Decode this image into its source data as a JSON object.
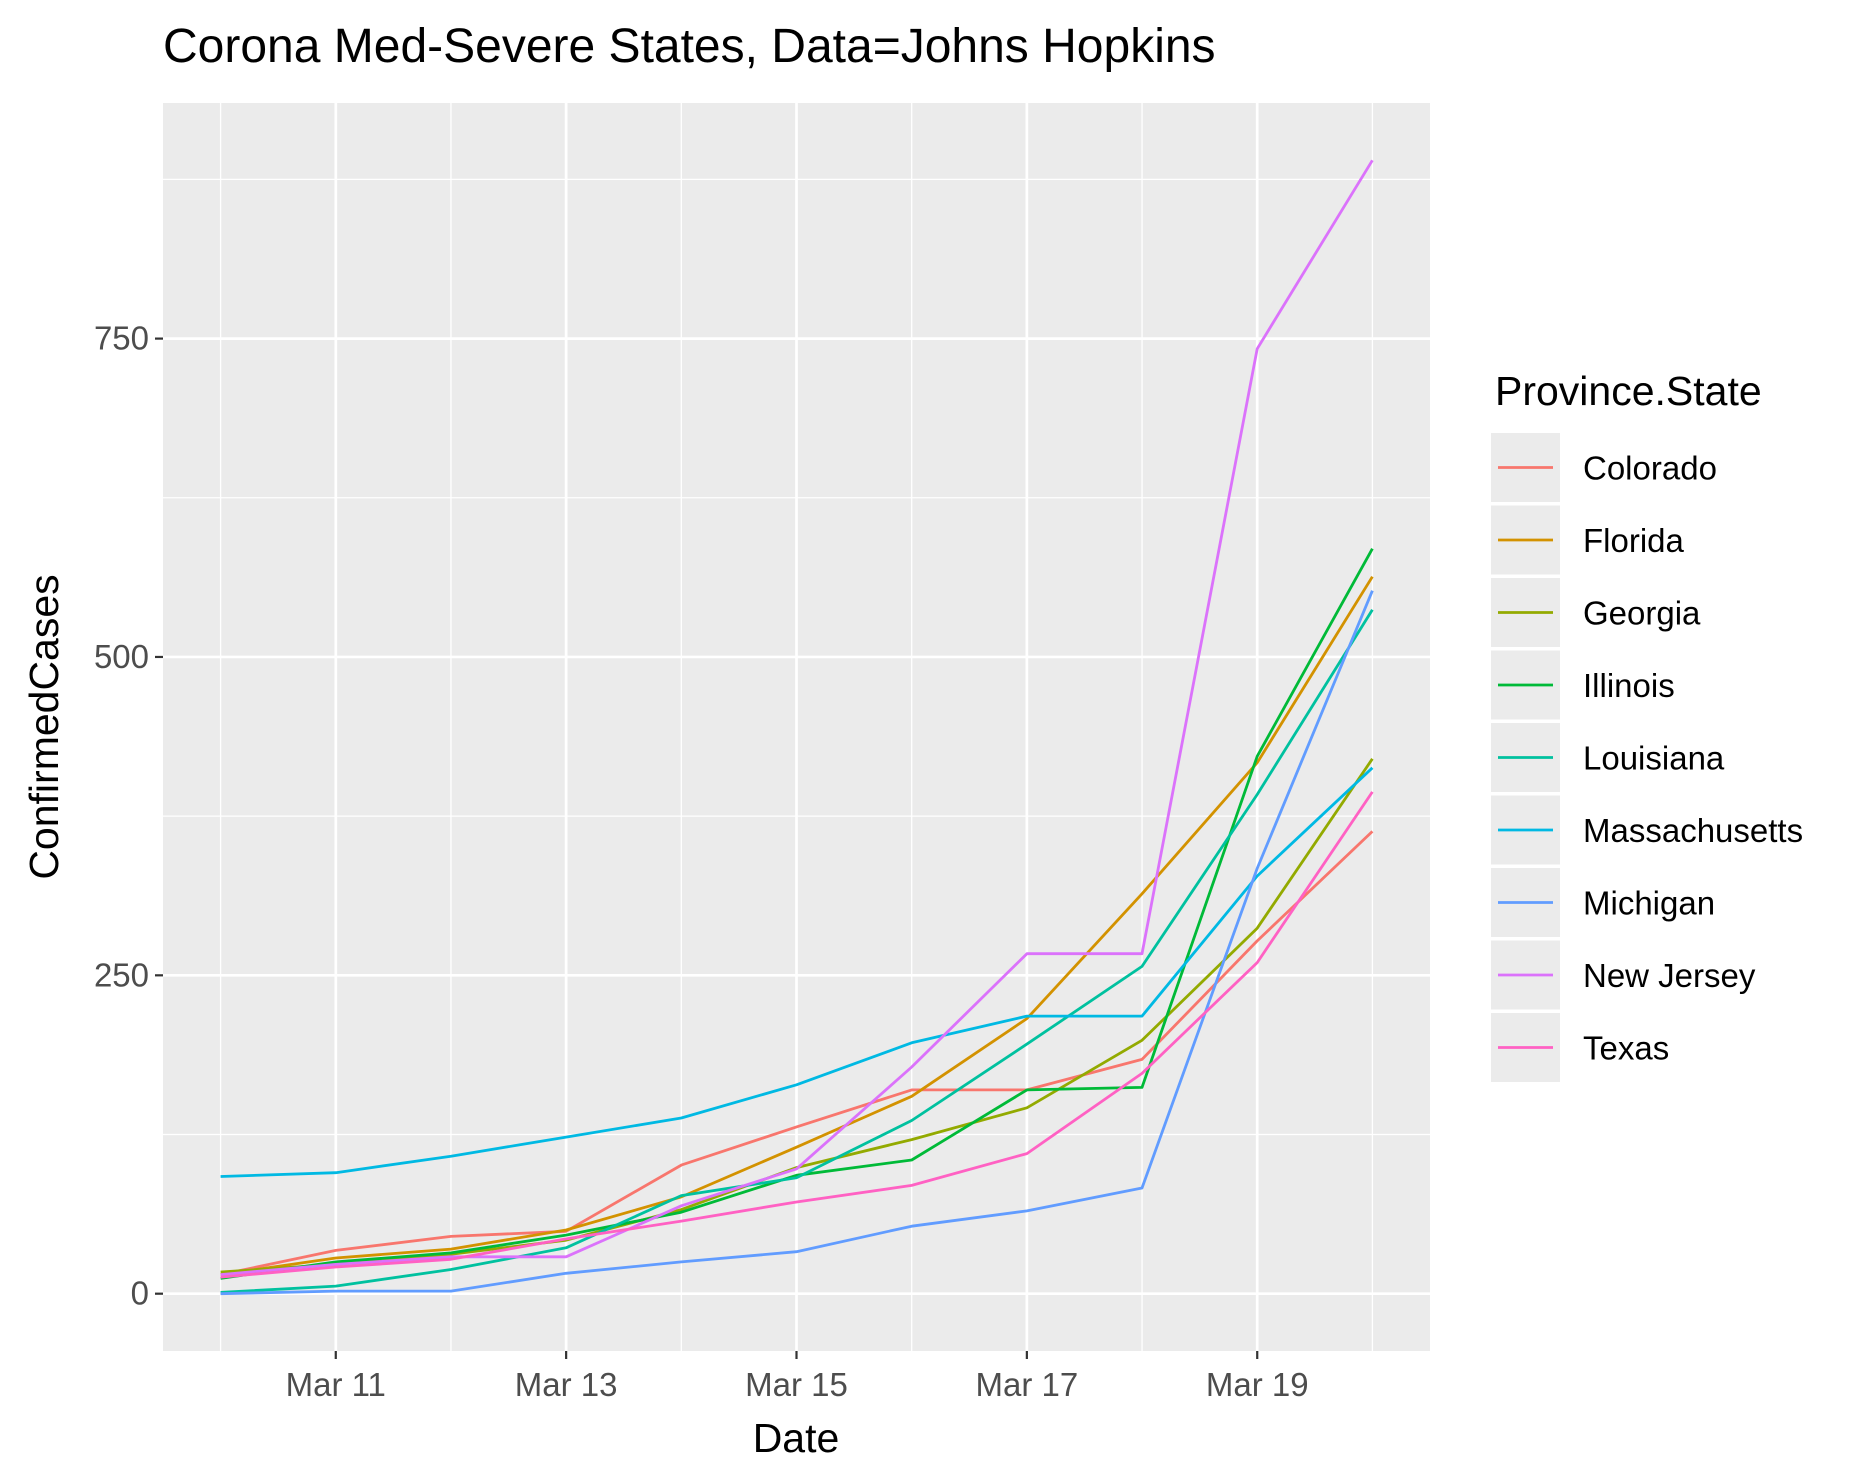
{
  "chart_data": {
    "type": "line",
    "title": "Corona Med-Severe States, Data=Johns Hopkins",
    "xlabel": "Date",
    "ylabel": "ConfirmedCases",
    "x": [
      "2020-03-10",
      "2020-03-11",
      "2020-03-12",
      "2020-03-13",
      "2020-03-14",
      "2020-03-15",
      "2020-03-16",
      "2020-03-17",
      "2020-03-18",
      "2020-03-19",
      "2020-03-20"
    ],
    "x_ticks": [
      {
        "date": "2020-03-11",
        "label": "Mar 11"
      },
      {
        "date": "2020-03-13",
        "label": "Mar 13"
      },
      {
        "date": "2020-03-15",
        "label": "Mar 15"
      },
      {
        "date": "2020-03-17",
        "label": "Mar 17"
      },
      {
        "date": "2020-03-19",
        "label": "Mar 19"
      }
    ],
    "xlim": [
      "2020-03-09T12:00",
      "2020-03-20T12:00"
    ],
    "y_ticks": [
      0,
      250,
      500,
      750
    ],
    "ylim": [
      -45,
      935
    ],
    "grid": true,
    "legend_title": "Province.State",
    "legend_position": "right",
    "background": "#ebebeb",
    "series": [
      {
        "name": "Colorado",
        "color": "#F8766D",
        "values": [
          15,
          34,
          45,
          49,
          101,
          131,
          160,
          160,
          184,
          277,
          363
        ]
      },
      {
        "name": "Florida",
        "color": "#D39200",
        "values": [
          15,
          28,
          35,
          50,
          76,
          115,
          155,
          216,
          314,
          417,
          563
        ]
      },
      {
        "name": "Georgia",
        "color": "#93AA00",
        "values": [
          17,
          23,
          31,
          42,
          66,
          99,
          121,
          146,
          199,
          287,
          420
        ]
      },
      {
        "name": "Illinois",
        "color": "#00BA38",
        "values": [
          12,
          25,
          32,
          46,
          64,
          93,
          105,
          160,
          162,
          422,
          585
        ]
      },
      {
        "name": "Louisiana",
        "color": "#00C19F",
        "values": [
          1,
          6,
          19,
          36,
          77,
          91,
          136,
          196,
          257,
          392,
          537
        ]
      },
      {
        "name": "Massachusetts",
        "color": "#00B9E3",
        "values": [
          92,
          95,
          108,
          123,
          138,
          164,
          197,
          218,
          218,
          328,
          413
        ]
      },
      {
        "name": "Michigan",
        "color": "#619CFF",
        "values": [
          0,
          2,
          2,
          16,
          25,
          33,
          53,
          65,
          83,
          334,
          552
        ]
      },
      {
        "name": "New Jersey",
        "color": "#DB72FB",
        "values": [
          15,
          23,
          29,
          29,
          69,
          98,
          178,
          267,
          267,
          742,
          890
        ]
      },
      {
        "name": "Texas",
        "color": "#FF61C3",
        "values": [
          13,
          21,
          27,
          43,
          57,
          72,
          85,
          110,
          173,
          260,
          394
        ]
      }
    ]
  }
}
